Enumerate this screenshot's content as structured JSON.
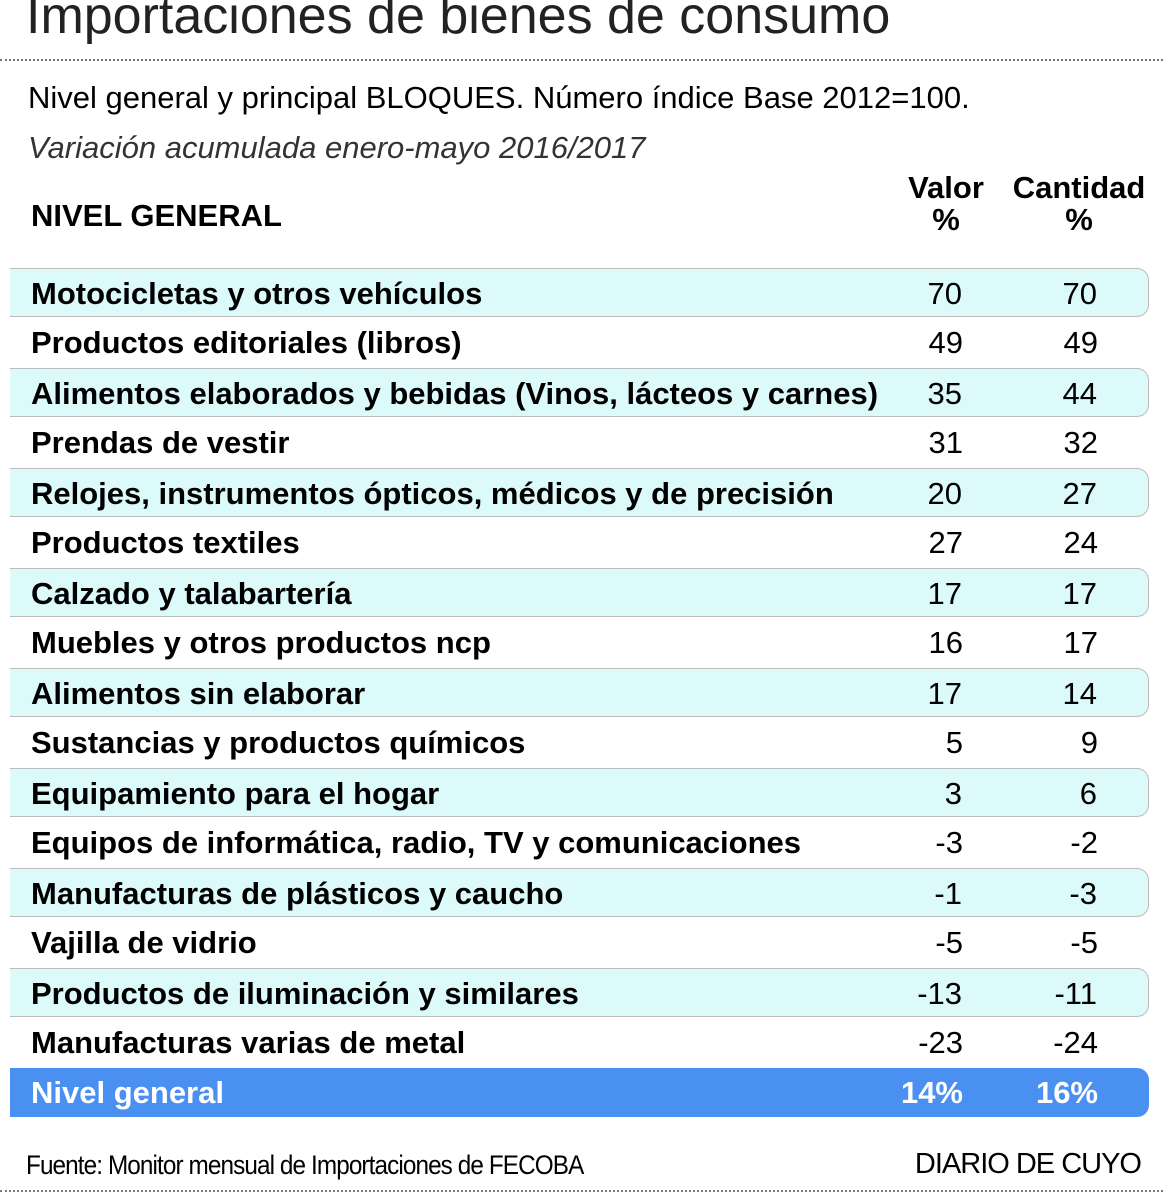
{
  "title": "Importaciones de bienes de consumo",
  "subtitle": "Nivel general y principal BLOQUES.  Número índice Base 2012=100.",
  "subtitle2": "Variación acumulada enero-mayo 2016/2017",
  "header": {
    "label": "NIVEL GENERAL",
    "col1_a": "Valor",
    "col1_b": "%",
    "col2_a": "Cantidad",
    "col2_b": "%"
  },
  "colors": {
    "shade": "#dcfafa",
    "total": "#4a90f0"
  },
  "chart_data": {
    "type": "table",
    "columns": [
      "NIVEL GENERAL",
      "Valor %",
      "Cantidad %"
    ],
    "rows": [
      {
        "label": "Motocicletas y otros vehículos",
        "valor": "70",
        "cantidad": "70"
      },
      {
        "label": "Productos editoriales (libros)",
        "valor": "49",
        "cantidad": "49"
      },
      {
        "label": "Alimentos elaborados y bebidas (Vinos, lácteos y carnes)",
        "valor": "35",
        "cantidad": "44"
      },
      {
        "label": "Prendas de vestir",
        "valor": "31",
        "cantidad": "32"
      },
      {
        "label": "Relojes, instrumentos ópticos, médicos y de precisión",
        "valor": "20",
        "cantidad": "27"
      },
      {
        "label": "Productos textiles",
        "valor": "27",
        "cantidad": "24"
      },
      {
        "label": "Calzado y talabartería",
        "valor": "17",
        "cantidad": "17"
      },
      {
        "label": "Muebles y otros productos ncp",
        "valor": "16",
        "cantidad": "17"
      },
      {
        "label": "Alimentos sin elaborar",
        "valor": "17",
        "cantidad": "14"
      },
      {
        "label": "Sustancias y productos químicos",
        "valor": "5",
        "cantidad": "9"
      },
      {
        "label": "Equipamiento para el hogar",
        "valor": "3",
        "cantidad": "6"
      },
      {
        "label": "Equipos de informática, radio, TV y comunicaciones",
        "valor": "-3",
        "cantidad": "-2"
      },
      {
        "label": "Manufacturas de plásticos y caucho",
        "valor": "-1",
        "cantidad": "-3"
      },
      {
        "label": "Vajilla de vidrio",
        "valor": "-5",
        "cantidad": "-5"
      },
      {
        "label": "Productos de iluminación y similares",
        "valor": "-13",
        "cantidad": "-11"
      },
      {
        "label": "Manufacturas varias de metal",
        "valor": "-23",
        "cantidad": "-24"
      }
    ],
    "total": {
      "label": "Nivel general",
      "valor": "14%",
      "cantidad": "16%"
    }
  },
  "footer": {
    "source": "Fuente: Monitor mensual de Importaciones de FECOBA",
    "brand": "DIARIO DE CUYO"
  }
}
